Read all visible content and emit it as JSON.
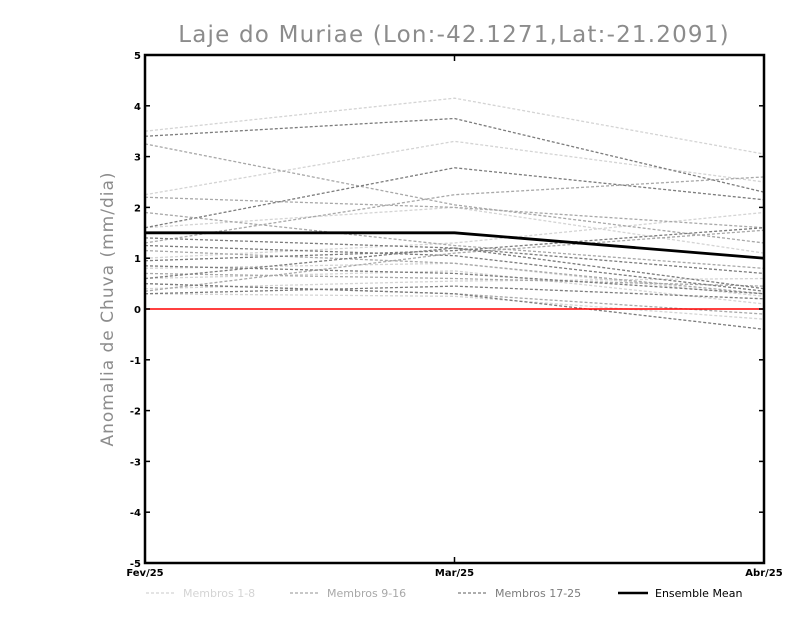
{
  "chart_data": {
    "type": "line",
    "title": "Laje do Muriae (Lon:-42.1271,Lat:-21.2091)",
    "xlabel": "",
    "ylabel": "Anomalia de Chuva (mm/dia)",
    "categories": [
      "Fev/25",
      "Mar/25",
      "Abr/25"
    ],
    "ylim": [
      -5,
      5
    ],
    "yticks": [
      "5",
      "4",
      "3",
      "2",
      "1",
      "0",
      "-1",
      "-2",
      "-3",
      "-4",
      "-5"
    ],
    "zero_line_color": "#ff0000",
    "grid": false,
    "legend_placement": "bottom",
    "legend": [
      {
        "label": "Membros 1-8",
        "color": "#d4d4d4",
        "dashed": true
      },
      {
        "label": "Membros 9-16",
        "color": "#a8a8a8",
        "dashed": true
      },
      {
        "label": "Membros 17-25",
        "color": "#7c7c7c",
        "dashed": true
      },
      {
        "label": "Ensemble Mean",
        "color": "#000000",
        "dashed": false
      }
    ],
    "series": [
      {
        "group": 1,
        "color": "#d4d4d4",
        "values": [
          3.5,
          4.15,
          3.05
        ]
      },
      {
        "group": 1,
        "color": "#d4d4d4",
        "values": [
          2.25,
          3.3,
          2.5
        ]
      },
      {
        "group": 1,
        "color": "#d4d4d4",
        "values": [
          1.6,
          2.0,
          1.1
        ]
      },
      {
        "group": 1,
        "color": "#d4d4d4",
        "values": [
          1.0,
          1.3,
          1.9
        ]
      },
      {
        "group": 1,
        "color": "#d4d4d4",
        "values": [
          0.8,
          0.9,
          0.25
        ]
      },
      {
        "group": 1,
        "color": "#d4d4d4",
        "values": [
          0.6,
          0.75,
          0.1
        ]
      },
      {
        "group": 1,
        "color": "#d4d4d4",
        "values": [
          0.4,
          0.55,
          0.6
        ]
      },
      {
        "group": 1,
        "color": "#d4d4d4",
        "values": [
          0.3,
          0.25,
          -0.2
        ]
      },
      {
        "group": 2,
        "color": "#a8a8a8",
        "values": [
          3.25,
          2.05,
          1.3
        ]
      },
      {
        "group": 2,
        "color": "#a8a8a8",
        "values": [
          2.2,
          2.0,
          1.6
        ]
      },
      {
        "group": 2,
        "color": "#a8a8a8",
        "values": [
          1.9,
          1.25,
          0.8
        ]
      },
      {
        "group": 2,
        "color": "#a8a8a8",
        "values": [
          1.3,
          2.25,
          2.6
        ]
      },
      {
        "group": 2,
        "color": "#a8a8a8",
        "values": [
          1.15,
          0.9,
          0.3
        ]
      },
      {
        "group": 2,
        "color": "#a8a8a8",
        "values": [
          0.7,
          0.6,
          0.45
        ]
      },
      {
        "group": 2,
        "color": "#a8a8a8",
        "values": [
          0.5,
          0.3,
          -0.1
        ]
      },
      {
        "group": 2,
        "color": "#a8a8a8",
        "values": [
          0.35,
          1.1,
          1.55
        ]
      },
      {
        "group": 3,
        "color": "#7c7c7c",
        "values": [
          3.4,
          3.75,
          2.3
        ]
      },
      {
        "group": 3,
        "color": "#7c7c7c",
        "values": [
          1.6,
          2.78,
          2.15
        ]
      },
      {
        "group": 3,
        "color": "#7c7c7c",
        "values": [
          1.4,
          1.2,
          0.7
        ]
      },
      {
        "group": 3,
        "color": "#7c7c7c",
        "values": [
          1.25,
          1.05,
          0.35
        ]
      },
      {
        "group": 3,
        "color": "#7c7c7c",
        "values": [
          0.95,
          1.15,
          1.6
        ]
      },
      {
        "group": 3,
        "color": "#7c7c7c",
        "values": [
          0.85,
          0.7,
          0.3
        ]
      },
      {
        "group": 3,
        "color": "#7c7c7c",
        "values": [
          0.6,
          1.2,
          0.4
        ]
      },
      {
        "group": 3,
        "color": "#7c7c7c",
        "values": [
          0.5,
          0.3,
          -0.4
        ]
      },
      {
        "group": 3,
        "color": "#7c7c7c",
        "values": [
          0.3,
          0.45,
          0.2
        ]
      }
    ],
    "ensemble_mean": {
      "name": "Ensemble Mean",
      "color": "#000000",
      "values": [
        1.5,
        1.5,
        1.0
      ]
    }
  }
}
